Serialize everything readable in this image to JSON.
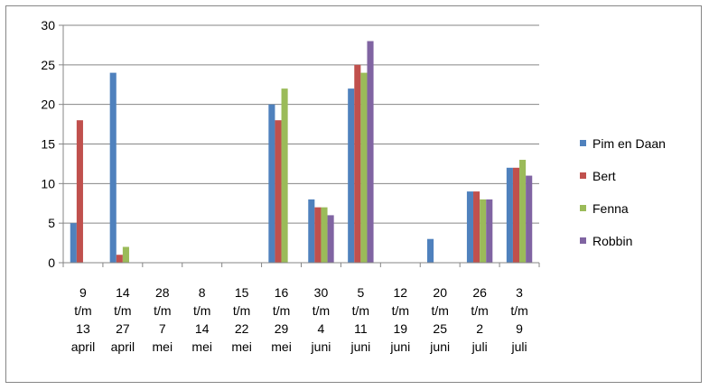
{
  "chart_data": {
    "type": "bar",
    "categories": [
      [
        "9",
        "t/m",
        "13",
        "april"
      ],
      [
        "14",
        "t/m",
        "27",
        "april"
      ],
      [
        "28",
        "t/m",
        "7",
        "mei"
      ],
      [
        "8",
        "t/m",
        "14",
        "mei"
      ],
      [
        "15",
        "t/m",
        "22",
        "mei"
      ],
      [
        "16",
        "t/m",
        "29",
        "mei"
      ],
      [
        "30",
        "t/m",
        "4",
        "juni"
      ],
      [
        "5",
        "t/m",
        "11",
        "juni"
      ],
      [
        "12",
        "t/m",
        "19",
        "juni"
      ],
      [
        "20",
        "t/m",
        "25",
        "juni"
      ],
      [
        "26",
        "t/m",
        "2",
        "juli"
      ],
      [
        "3",
        "t/m",
        "9",
        "juli"
      ]
    ],
    "series": [
      {
        "name": "Pim en Daan",
        "color": "#4F81BD",
        "values": [
          5,
          24,
          0,
          0,
          0,
          20,
          8,
          22,
          0,
          3,
          9,
          12
        ]
      },
      {
        "name": "Bert",
        "color": "#C0504D",
        "values": [
          18,
          1,
          0,
          0,
          0,
          18,
          7,
          25,
          0,
          0,
          9,
          12
        ]
      },
      {
        "name": "Fenna",
        "color": "#9BBB59",
        "values": [
          0,
          2,
          0,
          0,
          0,
          22,
          7,
          24,
          0,
          0,
          8,
          13
        ]
      },
      {
        "name": "Robbin",
        "color": "#8064A2",
        "values": [
          0,
          0,
          0,
          0,
          0,
          0,
          6,
          28,
          0,
          0,
          8,
          11
        ]
      }
    ],
    "yticks": [
      "0",
      "5",
      "10",
      "15",
      "20",
      "25",
      "30"
    ],
    "ylim": [
      0,
      30
    ],
    "grid": true,
    "legend": "right"
  }
}
